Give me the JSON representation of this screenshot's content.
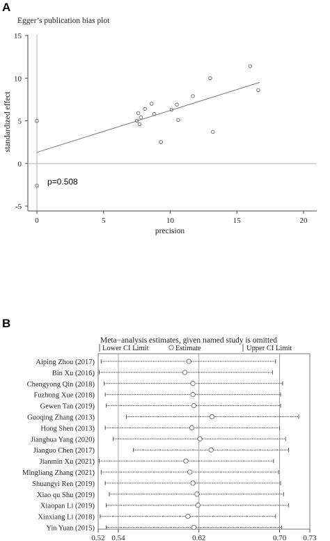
{
  "panelA": {
    "letter": "A",
    "title": "Egger’s publication bias plot",
    "xlabel": "precision",
    "ylabel": "standardized effect",
    "pvalue": "p=0.508",
    "xticks": [
      "0",
      "5",
      "10",
      "15",
      "20"
    ],
    "yticks": [
      "-5",
      "0",
      "5",
      "10",
      "15"
    ]
  },
  "panelB": {
    "letter": "B",
    "title": "Meta−analysis estimates, given named study is omitted",
    "legend": {
      "lower": "Lower CI Limit",
      "estimate": "Estimate",
      "upper": "Upper CI Limit"
    },
    "xticks": [
      "0.52",
      "0.54",
      "0.62",
      "0.70",
      "0.73"
    ]
  },
  "chart_data": [
    {
      "type": "scatter",
      "title": "Egger’s publication bias plot",
      "xlabel": "precision",
      "ylabel": "standardized effect",
      "xlim": [
        0,
        20
      ],
      "ylim": [
        -5,
        15
      ],
      "grid": false,
      "annotation": "p=0.508",
      "points": [
        {
          "x": 0,
          "y": 5.0
        },
        {
          "x": 0,
          "y": -2.6
        },
        {
          "x": 7.5,
          "y": 5.0
        },
        {
          "x": 7.6,
          "y": 5.9
        },
        {
          "x": 7.7,
          "y": 4.6
        },
        {
          "x": 7.8,
          "y": 5.4
        },
        {
          "x": 8.1,
          "y": 6.4
        },
        {
          "x": 8.6,
          "y": 7.0
        },
        {
          "x": 8.8,
          "y": 5.8
        },
        {
          "x": 9.3,
          "y": 2.5
        },
        {
          "x": 10.1,
          "y": 6.3
        },
        {
          "x": 10.5,
          "y": 6.9
        },
        {
          "x": 10.6,
          "y": 5.1
        },
        {
          "x": 11.7,
          "y": 7.9
        },
        {
          "x": 13.0,
          "y": 10.0
        },
        {
          "x": 13.2,
          "y": 3.7
        },
        {
          "x": 16.0,
          "y": 11.4
        },
        {
          "x": 16.6,
          "y": 8.6
        }
      ],
      "regression_line": {
        "x": [
          0,
          16.7
        ],
        "y": [
          1.3,
          9.5
        ]
      }
    },
    {
      "type": "forest",
      "title": "Meta−analysis estimates, given named study is omitted",
      "legend": [
        "Lower CI Limit",
        "Estimate",
        "Upper CI Limit"
      ],
      "xlim": [
        0.52,
        0.73
      ],
      "reference_lines": [
        0.54,
        0.62,
        0.7
      ],
      "xticks": [
        0.52,
        0.54,
        0.62,
        0.7,
        0.73
      ],
      "studies": [
        {
          "name": "Aiping Zhou (2017)",
          "lower": 0.523,
          "estimate": 0.61,
          "upper": 0.696
        },
        {
          "name": "Bin Xu (2016)",
          "lower": 0.521,
          "estimate": 0.606,
          "upper": 0.693
        },
        {
          "name": "Chengyong Qin (2018)",
          "lower": 0.526,
          "estimate": 0.614,
          "upper": 0.703
        },
        {
          "name": "Fuzhong Xue (2018)",
          "lower": 0.527,
          "estimate": 0.614,
          "upper": 0.701
        },
        {
          "name": "Gewen Tan (2019)",
          "lower": 0.528,
          "estimate": 0.615,
          "upper": 0.701
        },
        {
          "name": "Guoqing Zhang (2013)",
          "lower": 0.548,
          "estimate": 0.633,
          "upper": 0.719
        },
        {
          "name": "Hong Shen (2013)",
          "lower": 0.527,
          "estimate": 0.613,
          "upper": 0.7
        },
        {
          "name": "Jianghua Yang (2020)",
          "lower": 0.535,
          "estimate": 0.621,
          "upper": 0.706
        },
        {
          "name": "Jianguo Chen (2017)",
          "lower": 0.555,
          "estimate": 0.632,
          "upper": 0.709
        },
        {
          "name": "Jianmin Xu (2021)",
          "lower": 0.521,
          "estimate": 0.607,
          "upper": 0.694
        },
        {
          "name": "Mingliang Zhang (2021)",
          "lower": 0.523,
          "estimate": 0.611,
          "upper": 0.699
        },
        {
          "name": "Shuangyi Ren (2019)",
          "lower": 0.527,
          "estimate": 0.614,
          "upper": 0.701
        },
        {
          "name": "Xiao qu Shu (2019)",
          "lower": 0.531,
          "estimate": 0.618,
          "upper": 0.704
        },
        {
          "name": "Xiaopan Li (2019)",
          "lower": 0.528,
          "estimate": 0.619,
          "upper": 0.709
        },
        {
          "name": "Xinxiang Li (2018)",
          "lower": 0.522,
          "estimate": 0.609,
          "upper": 0.696
        },
        {
          "name": "Yin Yuan (2015)",
          "lower": 0.528,
          "estimate": 0.615,
          "upper": 0.702
        }
      ]
    }
  ]
}
